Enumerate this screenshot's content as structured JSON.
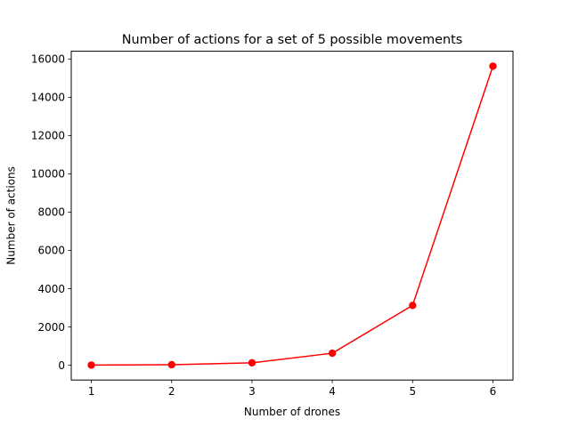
{
  "chart_data": {
    "type": "line",
    "title": "Number of actions for a set of 5 possible movements",
    "xlabel": "Number of drones",
    "ylabel": "Number of actions",
    "x": [
      1,
      2,
      3,
      4,
      5,
      6
    ],
    "series": [
      {
        "values": [
          5,
          25,
          125,
          625,
          3125,
          15625
        ],
        "color": "#ff0000",
        "marker": "circle"
      }
    ],
    "xticks": [
      "1",
      "2",
      "3",
      "4",
      "5",
      "6"
    ],
    "yticks": [
      "0",
      "2000",
      "4000",
      "6000",
      "8000",
      "10000",
      "12000",
      "14000",
      "16000"
    ],
    "xlim": [
      0.75,
      6.25
    ],
    "ylim": [
      -776,
      16406
    ],
    "grid": false
  }
}
